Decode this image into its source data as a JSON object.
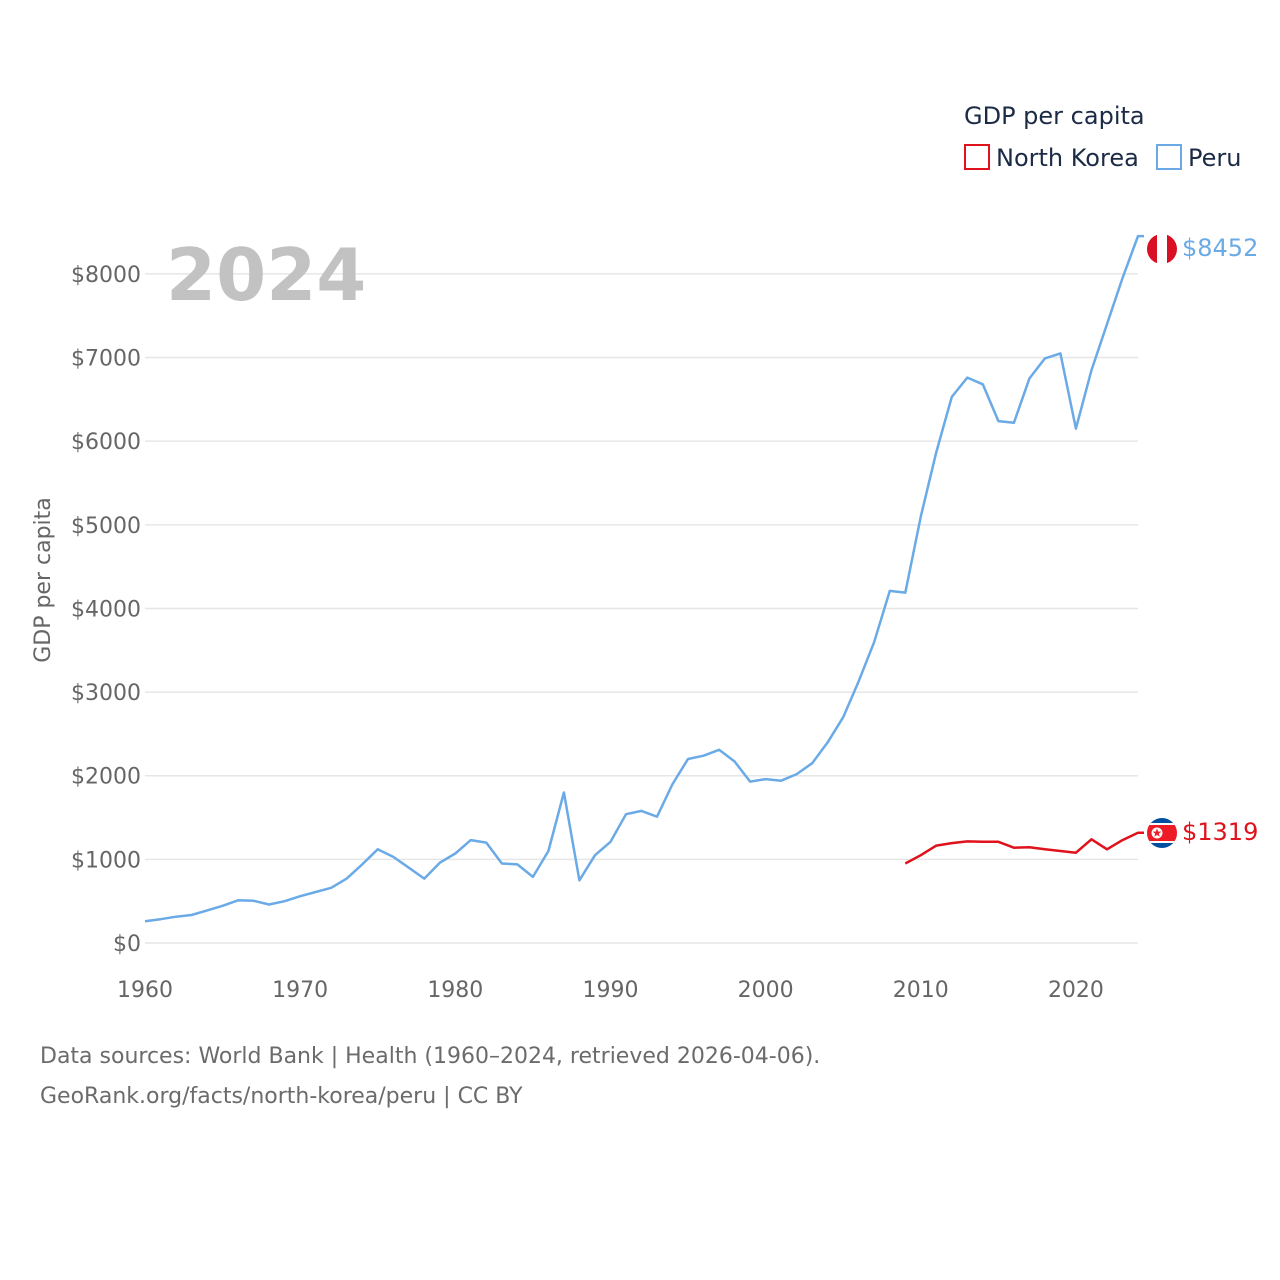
{
  "chart_data": {
    "type": "line",
    "title": "",
    "xlabel": "",
    "ylabel": "GDP per capita",
    "xlim": [
      1960,
      2024
    ],
    "ylim": [
      0,
      8800
    ],
    "x_ticks": [
      1960,
      1970,
      1980,
      1990,
      2000,
      2010,
      2020
    ],
    "x_tick_labels": [
      "1960",
      "1970",
      "1980",
      "1990",
      "2000",
      "2010",
      "2020"
    ],
    "y_ticks": [
      0,
      1000,
      2000,
      3000,
      4000,
      5000,
      6000,
      7000,
      8000
    ],
    "y_tick_labels": [
      "$0",
      "$1000",
      "$2000",
      "$3000",
      "$4000",
      "$5000",
      "$6000",
      "$7000",
      "$8000"
    ],
    "grid": true,
    "year_label": "2024",
    "legend": {
      "title": "GDP per capita",
      "position": "top-right"
    },
    "series": [
      {
        "name": "North Korea",
        "color": "#e0121b",
        "end_label": "$1319",
        "flag": "north-korea-flag",
        "x": [
          2009,
          2010,
          2011,
          2012,
          2013,
          2014,
          2015,
          2016,
          2017,
          2018,
          2019,
          2020,
          2021,
          2022,
          2023,
          2024
        ],
        "values": [
          950,
          1050,
          1165,
          1195,
          1215,
          1210,
          1210,
          1140,
          1145,
          1120,
          1100,
          1080,
          1240,
          1120,
          1230,
          1319
        ]
      },
      {
        "name": "Peru",
        "color": "#6aaae6",
        "end_label": "$8452",
        "flag": "peru-flag",
        "x": [
          1960,
          1961,
          1962,
          1963,
          1964,
          1965,
          1966,
          1967,
          1968,
          1969,
          1970,
          1971,
          1972,
          1973,
          1974,
          1975,
          1976,
          1977,
          1978,
          1979,
          1980,
          1981,
          1982,
          1983,
          1984,
          1985,
          1986,
          1987,
          1988,
          1989,
          1990,
          1991,
          1992,
          1993,
          1994,
          1995,
          1996,
          1997,
          1998,
          1999,
          2000,
          2001,
          2002,
          2003,
          2004,
          2005,
          2006,
          2007,
          2008,
          2009,
          2010,
          2011,
          2012,
          2013,
          2014,
          2015,
          2016,
          2017,
          2018,
          2019,
          2020,
          2021,
          2022,
          2023,
          2024
        ],
        "values": [
          260,
          285,
          315,
          335,
          390,
          445,
          510,
          505,
          460,
          500,
          560,
          610,
          660,
          770,
          940,
          1120,
          1030,
          900,
          770,
          960,
          1070,
          1230,
          1200,
          950,
          940,
          790,
          1100,
          1800,
          750,
          1050,
          1210,
          1540,
          1580,
          1510,
          1900,
          2200,
          2240,
          2310,
          2170,
          1930,
          1960,
          1940,
          2020,
          2150,
          2400,
          2700,
          3130,
          3600,
          4210,
          4190,
          5100,
          5870,
          6530,
          6760,
          6680,
          6240,
          6220,
          6750,
          6990,
          7050,
          6150,
          6850,
          7400,
          7950,
          8452
        ]
      }
    ]
  },
  "footer": {
    "line1": "Data sources: World Bank | Health (1960–2024, retrieved 2026-04-06).",
    "line2": "GeoRank.org/facts/north-korea/peru | CC BY"
  }
}
